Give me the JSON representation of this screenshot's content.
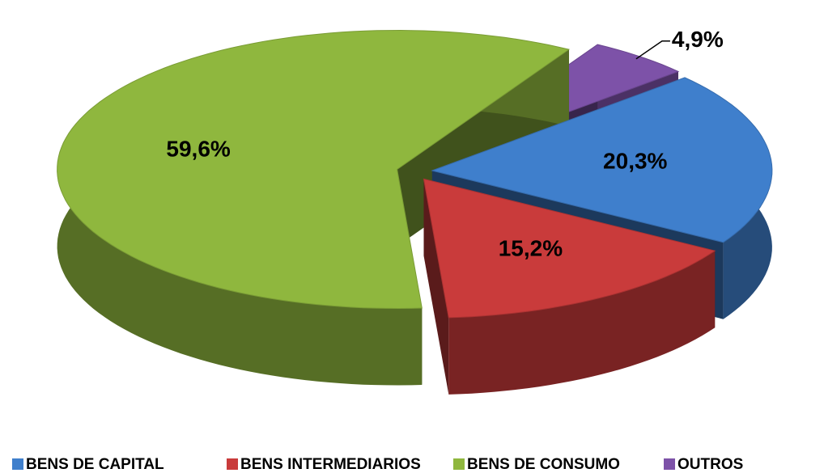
{
  "chart_data": {
    "type": "pie",
    "categories": [
      "BENS DE CAPITAL",
      "BENS INTERMEDIARIOS",
      "BENS DE CONSUMO",
      "OUTROS"
    ],
    "values": [
      20.3,
      15.2,
      59.6,
      4.9
    ],
    "value_labels": [
      "20,3%",
      "15,2%",
      "59,6%",
      "4,9%"
    ],
    "colors": [
      "#3f7fcc",
      "#c93b3b",
      "#8fb73e",
      "#7d52a8"
    ],
    "legend": "bottom"
  }
}
